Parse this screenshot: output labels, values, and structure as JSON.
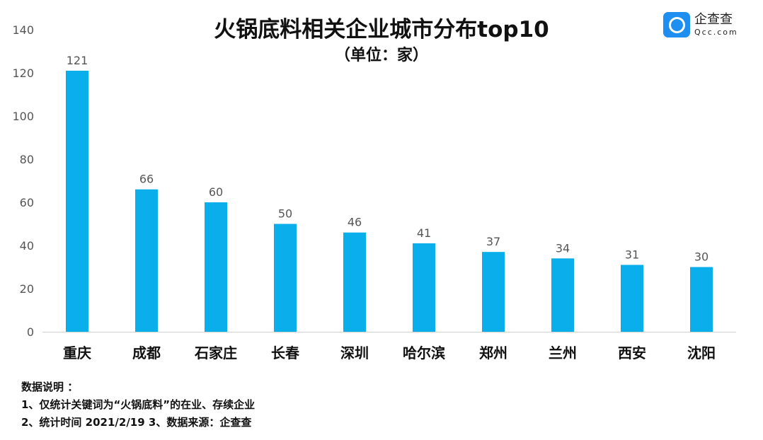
{
  "chart_data": {
    "type": "bar",
    "title": "火锅底料相关企业城市分布top10",
    "subtitle": "（单位：家）",
    "categories": [
      "重庆",
      "成都",
      "石家庄",
      "长春",
      "深圳",
      "哈尔滨",
      "郑州",
      "兰州",
      "西安",
      "沈阳"
    ],
    "values": [
      121,
      66,
      60,
      50,
      46,
      41,
      37,
      34,
      31,
      30
    ],
    "ylim": [
      0,
      140
    ],
    "yticks": [
      0,
      20,
      40,
      60,
      80,
      100,
      120,
      140
    ],
    "grid": false,
    "bar_color": "#0aaeea"
  },
  "logo": {
    "cn": "企查查",
    "en": "Qcc.com"
  },
  "notes": [
    "数据说明 ：",
    "1、仅统计关键词为“火锅底料”的在业、存续企业",
    "2、统计时间 2021/2/19   3、数据来源：企查查"
  ]
}
